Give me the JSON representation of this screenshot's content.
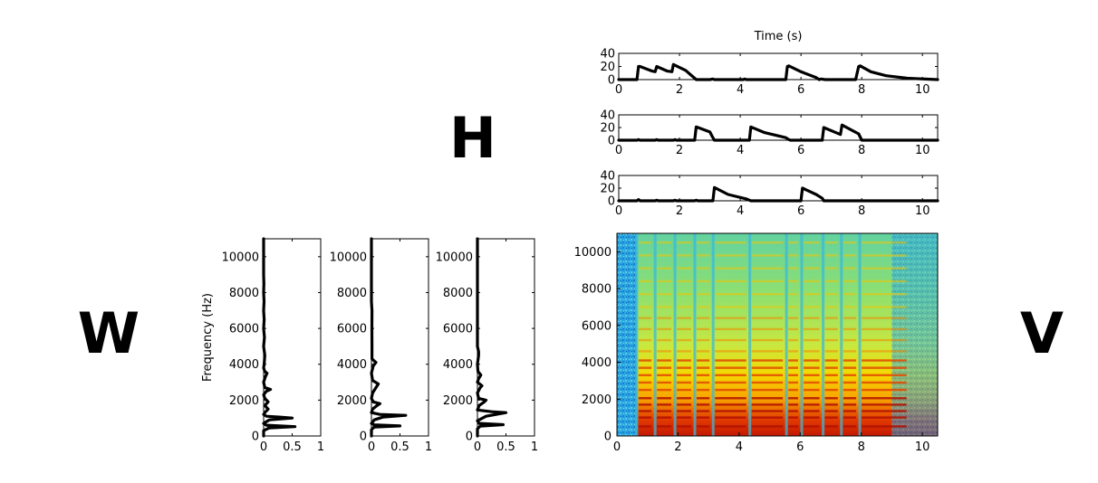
{
  "labels": {
    "W": "W",
    "H": "H",
    "V": "V",
    "time_label": "Time (s)",
    "freq_label": "Frequency (Hz)"
  },
  "chart_data": [
    {
      "type": "line",
      "id": "H-row-1",
      "xlabel": "Time (s)",
      "xlim": [
        0,
        10.5
      ],
      "ylim": [
        0,
        40
      ],
      "xticks": [
        "0",
        "2",
        "4",
        "6",
        "8",
        "10"
      ],
      "yticks": [
        "0",
        "20",
        "40"
      ],
      "x": [
        0,
        0.6,
        0.65,
        0.7,
        1.1,
        1.2,
        1.25,
        1.6,
        1.75,
        1.8,
        2.2,
        2.5,
        2.55,
        3.0,
        3.1,
        3.15,
        4.1,
        4.15,
        4.2,
        5.5,
        5.55,
        5.6,
        6.0,
        6.5,
        6.6,
        6.65,
        6.8,
        7.8,
        7.9,
        7.95,
        8.3,
        8.8,
        9.5,
        10.5
      ],
      "y": [
        0,
        0,
        20,
        20,
        13,
        12,
        20,
        13,
        12,
        23,
        14,
        2,
        0,
        0,
        1,
        0,
        0,
        1,
        0,
        0,
        20,
        21,
        12,
        3,
        0,
        1,
        0,
        0,
        20,
        21,
        12,
        6,
        2,
        0
      ],
      "series": [
        {
          "values_ref": "y"
        }
      ]
    },
    {
      "type": "line",
      "id": "H-row-2",
      "xlim": [
        0,
        10.5
      ],
      "ylim": [
        0,
        40
      ],
      "xticks": [
        "0",
        "2",
        "4",
        "6",
        "8",
        "10"
      ],
      "yticks": [
        "0",
        "20",
        "40"
      ],
      "x": [
        0,
        0.6,
        0.65,
        0.7,
        1.2,
        1.25,
        1.3,
        1.8,
        1.85,
        1.9,
        2.5,
        2.55,
        3.0,
        3.1,
        3.15,
        4.3,
        4.35,
        4.8,
        5.5,
        5.6,
        5.65,
        6.7,
        6.75,
        7.2,
        7.3,
        7.35,
        7.9,
        8.0,
        10.5
      ],
      "y": [
        0,
        0,
        1,
        0,
        0,
        1,
        0,
        0,
        1,
        0,
        0,
        21,
        13,
        4,
        0,
        0,
        21,
        12,
        4,
        1,
        0,
        0,
        20,
        11,
        9,
        24,
        10,
        0,
        0
      ]
    },
    {
      "type": "line",
      "id": "H-row-3",
      "xlim": [
        0,
        10.5
      ],
      "ylim": [
        0,
        40
      ],
      "xticks": [
        "0",
        "2",
        "4",
        "6",
        "8",
        "10"
      ],
      "yticks": [
        "0",
        "20",
        "40"
      ],
      "x": [
        0,
        0.6,
        0.65,
        0.7,
        1.2,
        1.25,
        1.3,
        1.8,
        1.85,
        1.9,
        2.5,
        2.55,
        2.6,
        3.1,
        3.15,
        3.6,
        4.2,
        4.3,
        4.35,
        6.0,
        6.05,
        6.5,
        6.7,
        6.75,
        10.5
      ],
      "y": [
        0,
        0,
        2,
        0,
        0,
        1,
        0,
        0,
        1,
        0,
        0,
        1,
        0,
        0,
        21,
        10,
        3,
        1,
        0,
        0,
        20,
        10,
        4,
        0,
        0
      ]
    },
    {
      "type": "line",
      "id": "W-col-1",
      "ylabel": "Frequency (Hz)",
      "xlim": [
        0,
        1
      ],
      "ylim": [
        0,
        11000
      ],
      "xticks": [
        "0",
        "0.5",
        "1"
      ],
      "yticks": [
        "0",
        "2000",
        "4000",
        "6000",
        "8000",
        "10000"
      ],
      "freq": [
        0,
        300,
        450,
        520,
        600,
        700,
        800,
        900,
        1000,
        1050,
        1100,
        1200,
        1300,
        1500,
        1700,
        1900,
        2100,
        2300,
        2500,
        2600,
        2700,
        3000,
        3300,
        3500,
        3600,
        3800,
        4000,
        4500,
        5000,
        5500,
        6000,
        6500,
        7000,
        7500,
        8000,
        8500,
        9000,
        11000
      ],
      "weight": [
        0,
        0,
        0.1,
        0.55,
        0.05,
        0,
        0.05,
        0.1,
        0.5,
        0.3,
        0.05,
        0,
        0.02,
        0.08,
        0.02,
        0.08,
        0.02,
        0,
        0.05,
        0.12,
        0.02,
        0,
        0.03,
        0.06,
        0.02,
        0,
        0.01,
        0.02,
        0,
        0.015,
        0,
        0.01,
        0,
        0.008,
        0,
        0.005,
        0,
        0
      ]
    },
    {
      "type": "line",
      "id": "W-col-2",
      "xlim": [
        0,
        1
      ],
      "ylim": [
        0,
        11000
      ],
      "xticks": [
        "0",
        "0.5",
        "1"
      ],
      "yticks": [
        "0",
        "2000",
        "4000",
        "6000",
        "8000",
        "10000"
      ],
      "freq": [
        0,
        350,
        500,
        560,
        620,
        700,
        900,
        1050,
        1150,
        1200,
        1300,
        1500,
        1700,
        1800,
        1900,
        2100,
        2400,
        2700,
        2900,
        3100,
        3500,
        3900,
        4100,
        4300,
        5000,
        6000,
        7000,
        7500,
        11000
      ],
      "weight": [
        0,
        0,
        0.05,
        0.5,
        0.05,
        0,
        0.05,
        0.2,
        0.6,
        0.15,
        0,
        0.02,
        0.1,
        0.15,
        0.03,
        0,
        0.02,
        0.08,
        0.12,
        0.02,
        0,
        0.03,
        0.08,
        0.01,
        0.01,
        0.008,
        0.01,
        0,
        0
      ]
    },
    {
      "type": "line",
      "id": "W-col-3",
      "xlim": [
        0,
        1
      ],
      "ylim": [
        0,
        11000
      ],
      "xticks": [
        "0",
        "0.5",
        "1"
      ],
      "yticks": [
        "0",
        "2000",
        "4000",
        "6000",
        "8000",
        "10000"
      ],
      "freq": [
        0,
        400,
        550,
        630,
        700,
        850,
        1100,
        1300,
        1350,
        1450,
        1700,
        1900,
        2000,
        2100,
        2400,
        2700,
        2800,
        3000,
        3200,
        3400,
        3600,
        4000,
        4500,
        4700,
        5000,
        11000
      ],
      "weight": [
        0,
        0,
        0.05,
        0.45,
        0.03,
        0,
        0.15,
        0.5,
        0.25,
        0,
        0.03,
        0.12,
        0.15,
        0.02,
        0,
        0.05,
        0.08,
        0,
        0.02,
        0.06,
        0.01,
        0,
        0.02,
        0.02,
        0,
        0
      ]
    },
    {
      "type": "heatmap",
      "id": "V-spectrogram",
      "xlim": [
        0,
        10.5
      ],
      "ylim": [
        0,
        11000
      ],
      "xticks": [
        "0",
        "2",
        "4",
        "6",
        "8",
        "10"
      ],
      "yticks": [
        "0",
        "2000",
        "4000",
        "6000",
        "8000",
        "10000"
      ],
      "colormap": "jet",
      "onsets": [
        0.65,
        1.25,
        1.9,
        2.55,
        3.15,
        4.35,
        5.55,
        6.05,
        6.75,
        7.35,
        7.95
      ]
    }
  ]
}
